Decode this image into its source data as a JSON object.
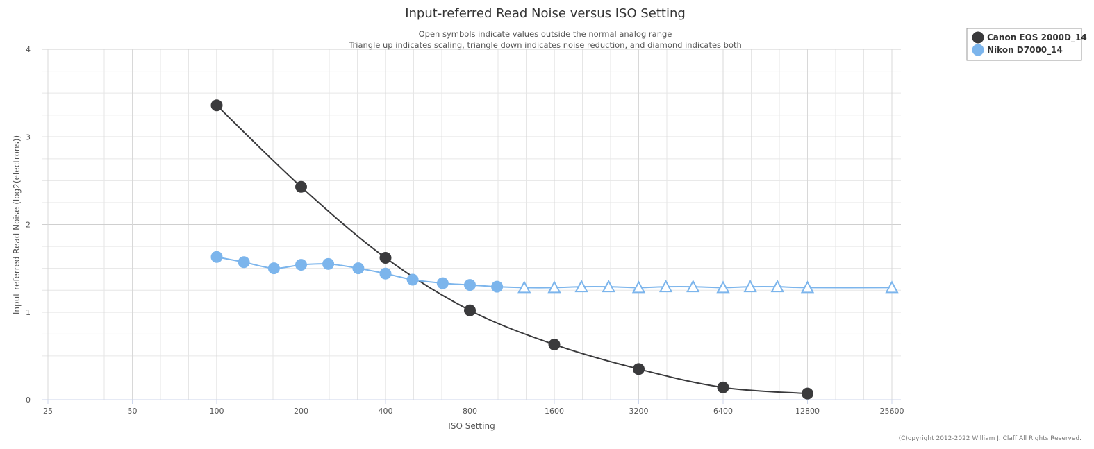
{
  "chart_data": {
    "type": "line",
    "title": "Input-referred Read Noise versus ISO Setting",
    "subtitle": [
      "Open symbols indicate values outside the normal analog range",
      "Triangle up indicates scaling, triangle down indicates noise reduction, and diamond indicates both"
    ],
    "xlabel": "ISO Setting",
    "ylabel": "Input-referred Read Noise (log2(electrons))",
    "x_scale": "log2",
    "xlim": [
      25,
      25600
    ],
    "x_ticks": [
      25,
      50,
      100,
      200,
      400,
      800,
      1600,
      3200,
      6400,
      12800,
      25600
    ],
    "ylim": [
      0,
      4
    ],
    "y_ticks": [
      0,
      1,
      2,
      3,
      4
    ],
    "grid": true,
    "legend_position": "top-right",
    "credits": "(C)opyright 2012-2022 William J. Claff All Rights Reserved.",
    "series": [
      {
        "name": "Canon EOS 2000D_14",
        "color": "#3a3a3c",
        "points": [
          {
            "x": 100,
            "y": 3.36,
            "marker": "circle"
          },
          {
            "x": 200,
            "y": 2.43,
            "marker": "circle"
          },
          {
            "x": 400,
            "y": 1.62,
            "marker": "circle"
          },
          {
            "x": 800,
            "y": 1.02,
            "marker": "circle"
          },
          {
            "x": 1600,
            "y": 0.63,
            "marker": "circle"
          },
          {
            "x": 3200,
            "y": 0.35,
            "marker": "circle"
          },
          {
            "x": 6400,
            "y": 0.14,
            "marker": "circle"
          },
          {
            "x": 12800,
            "y": 0.07,
            "marker": "circle"
          }
        ]
      },
      {
        "name": "Nikon D7000_14",
        "color": "#7cb5ec",
        "points": [
          {
            "x": 100,
            "y": 1.63,
            "marker": "circle"
          },
          {
            "x": 125,
            "y": 1.57,
            "marker": "circle"
          },
          {
            "x": 160,
            "y": 1.5,
            "marker": "circle"
          },
          {
            "x": 200,
            "y": 1.54,
            "marker": "circle"
          },
          {
            "x": 250,
            "y": 1.55,
            "marker": "circle"
          },
          {
            "x": 320,
            "y": 1.5,
            "marker": "circle"
          },
          {
            "x": 400,
            "y": 1.44,
            "marker": "circle"
          },
          {
            "x": 500,
            "y": 1.37,
            "marker": "circle"
          },
          {
            "x": 640,
            "y": 1.33,
            "marker": "circle"
          },
          {
            "x": 800,
            "y": 1.31,
            "marker": "circle"
          },
          {
            "x": 1000,
            "y": 1.29,
            "marker": "circle"
          },
          {
            "x": 1250,
            "y": 1.28,
            "marker": "triangle-open"
          },
          {
            "x": 1600,
            "y": 1.28,
            "marker": "triangle-open"
          },
          {
            "x": 2000,
            "y": 1.29,
            "marker": "triangle-open"
          },
          {
            "x": 2500,
            "y": 1.29,
            "marker": "triangle-open"
          },
          {
            "x": 3200,
            "y": 1.28,
            "marker": "triangle-open"
          },
          {
            "x": 4000,
            "y": 1.29,
            "marker": "triangle-open"
          },
          {
            "x": 5000,
            "y": 1.29,
            "marker": "triangle-open"
          },
          {
            "x": 6400,
            "y": 1.28,
            "marker": "triangle-open"
          },
          {
            "x": 8000,
            "y": 1.29,
            "marker": "triangle-open"
          },
          {
            "x": 10000,
            "y": 1.29,
            "marker": "triangle-open"
          },
          {
            "x": 12800,
            "y": 1.28,
            "marker": "triangle-open"
          },
          {
            "x": 25600,
            "y": 1.28,
            "marker": "triangle-open"
          }
        ]
      }
    ]
  }
}
